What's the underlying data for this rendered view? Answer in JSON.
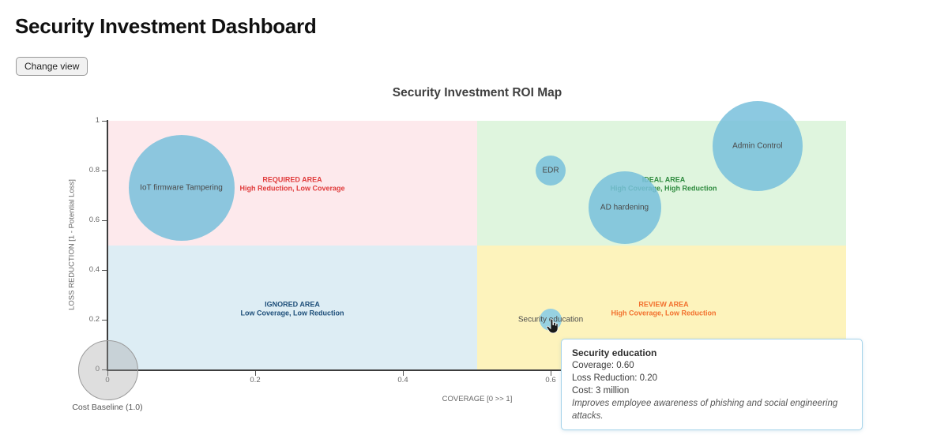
{
  "page": {
    "title": "Security Investment Dashboard",
    "buttons": {
      "change_view": "Change view"
    }
  },
  "chart": {
    "title": "Security Investment ROI Map",
    "x_axis": {
      "label": "COVERAGE [0 >> 1]",
      "ticks": [
        "0",
        "0.2",
        "0.4",
        "0.6"
      ],
      "range": [
        0,
        1
      ]
    },
    "y_axis": {
      "label": "LOSS REDUCTION [1 - Potential Loss]",
      "ticks": [
        "0",
        "0.2",
        "0.4",
        "0.6",
        "0.8",
        "1"
      ],
      "range": [
        0,
        1
      ]
    },
    "quadrants": [
      {
        "id": "required",
        "name": "REQUIRED AREA",
        "subtitle": "High Reduction,  Low Coverage",
        "text_color": "#e03b3b",
        "fill": "#fde9ec"
      },
      {
        "id": "ideal",
        "name": "IDEAL AREA",
        "subtitle": "High Coverage,  High Reduction",
        "text_color": "#2f8b3f",
        "fill": "#dff5de"
      },
      {
        "id": "ignored",
        "name": "IGNORED AREA",
        "subtitle": "Low Coverage,  Low Reduction",
        "text_color": "#1d4e79",
        "fill": "#ddedf4"
      },
      {
        "id": "review",
        "name": "REVIEW AREA",
        "subtitle": "High Coverage,  Low Reduction",
        "text_color": "#f2702d",
        "fill": "#fdf3bc"
      }
    ]
  },
  "chart_data": {
    "type": "scatter",
    "subtype": "bubble",
    "title": "Security Investment ROI Map",
    "xlabel": "COVERAGE [0 >> 1]",
    "ylabel": "LOSS REDUCTION [1 - Potential Loss]",
    "xlim": [
      0,
      1
    ],
    "ylim": [
      0,
      1
    ],
    "grid": false,
    "bubble_color": "rgba(120,192,220,0.85)",
    "points": [
      {
        "name": "IoT firmware Tampering",
        "coverage": 0.1,
        "loss_reduction": 0.73,
        "radius_px": 67
      },
      {
        "name": "EDR",
        "coverage": 0.6,
        "loss_reduction": 0.8,
        "radius_px": 19
      },
      {
        "name": "AD hardening",
        "coverage": 0.7,
        "loss_reduction": 0.65,
        "radius_px": 46
      },
      {
        "name": "Admin Control",
        "coverage": 0.88,
        "loss_reduction": 0.9,
        "radius_px": 57
      },
      {
        "name": "Security education",
        "coverage": 0.6,
        "loss_reduction": 0.2,
        "radius_px": 14,
        "cost": "3 million",
        "color": "rgba(140,205,228,0.9)",
        "hovered": true
      },
      {
        "name": "Cost Baseline (1.0)",
        "coverage": 0.0,
        "loss_reduction": 0.0,
        "radius_px": 37,
        "color": "rgba(160,160,160,0.35)",
        "border": "#9a9a9a",
        "label_outside": true
      }
    ]
  },
  "tooltip": {
    "title": "Security education",
    "lines": [
      "Coverage: 0.60",
      "Loss Reduction: 0.20",
      "Cost: 3 million"
    ],
    "note": "Improves employee awareness of phishing and social engineering attacks."
  }
}
